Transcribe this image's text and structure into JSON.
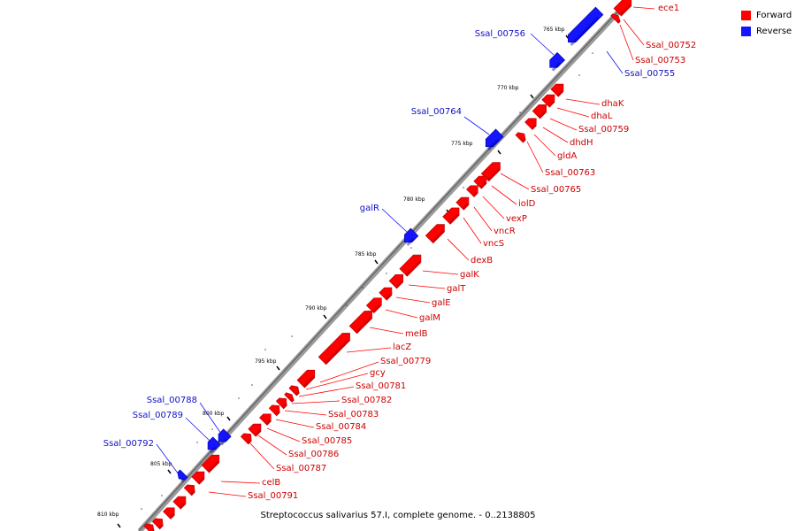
{
  "colors": {
    "forward": "#ff0000",
    "reverse": "#1414ff",
    "backbone": "#9a9a9a",
    "forward_label": "#cc0000",
    "reverse_label": "#1010c8"
  },
  "legend": [
    {
      "label": "Forward",
      "color": "#ff0000"
    },
    {
      "label": "Reverse",
      "color": "#1414ff"
    }
  ],
  "caption": "Streptococcus salivarius 57.I, complete genome. - 0..2138805",
  "scale": {
    "ticks": [
      {
        "label": "765 kbp",
        "kbp": 765
      },
      {
        "label": "770 kbp",
        "kbp": 770
      },
      {
        "label": "775 kbp",
        "kbp": 775
      },
      {
        "label": "780 kbp",
        "kbp": 780
      },
      {
        "label": "785 kbp",
        "kbp": 785
      },
      {
        "label": "790 kbp",
        "kbp": 790
      },
      {
        "label": "795 kbp",
        "kbp": 795
      },
      {
        "label": "800 kbp",
        "kbp": 800
      },
      {
        "label": "805 kbp",
        "kbp": 805
      },
      {
        "label": "810 kbp",
        "kbp": 810
      }
    ]
  },
  "features": [
    {
      "name": "ece1",
      "strand": "forward"
    },
    {
      "name": "Ssal_00752",
      "strand": "forward"
    },
    {
      "name": "Ssal_00753",
      "strand": "forward"
    },
    {
      "name": "Ssal_00755",
      "strand": "reverse"
    },
    {
      "name": "Ssal_00756",
      "strand": "reverse"
    },
    {
      "name": "dhaK",
      "strand": "forward"
    },
    {
      "name": "dhaL",
      "strand": "forward"
    },
    {
      "name": "Ssal_00759",
      "strand": "forward"
    },
    {
      "name": "dhdH",
      "strand": "forward"
    },
    {
      "name": "gldA",
      "strand": "forward"
    },
    {
      "name": "Ssal_00763",
      "strand": "forward"
    },
    {
      "name": "Ssal_00764",
      "strand": "reverse"
    },
    {
      "name": "Ssal_00765",
      "strand": "forward"
    },
    {
      "name": "iolD",
      "strand": "forward"
    },
    {
      "name": "vexP",
      "strand": "forward"
    },
    {
      "name": "vncR",
      "strand": "forward"
    },
    {
      "name": "vncS",
      "strand": "forward"
    },
    {
      "name": "galR",
      "strand": "reverse"
    },
    {
      "name": "dexB",
      "strand": "forward"
    },
    {
      "name": "galK",
      "strand": "forward"
    },
    {
      "name": "galT",
      "strand": "forward"
    },
    {
      "name": "galE",
      "strand": "forward"
    },
    {
      "name": "galM",
      "strand": "forward"
    },
    {
      "name": "melB",
      "strand": "forward"
    },
    {
      "name": "lacZ",
      "strand": "forward"
    },
    {
      "name": "Ssal_00779",
      "strand": "forward"
    },
    {
      "name": "gcy",
      "strand": "forward"
    },
    {
      "name": "Ssal_00781",
      "strand": "forward"
    },
    {
      "name": "Ssal_00782",
      "strand": "forward"
    },
    {
      "name": "Ssal_00783",
      "strand": "forward"
    },
    {
      "name": "Ssal_00784",
      "strand": "forward"
    },
    {
      "name": "Ssal_00785",
      "strand": "forward"
    },
    {
      "name": "Ssal_00786",
      "strand": "forward"
    },
    {
      "name": "Ssal_00787",
      "strand": "forward"
    },
    {
      "name": "Ssal_00788",
      "strand": "reverse"
    },
    {
      "name": "Ssal_00789",
      "strand": "reverse"
    },
    {
      "name": "Ssal_00792",
      "strand": "reverse"
    },
    {
      "name": "celB",
      "strand": "forward"
    },
    {
      "name": "Ssal_00791",
      "strand": "forward"
    }
  ]
}
